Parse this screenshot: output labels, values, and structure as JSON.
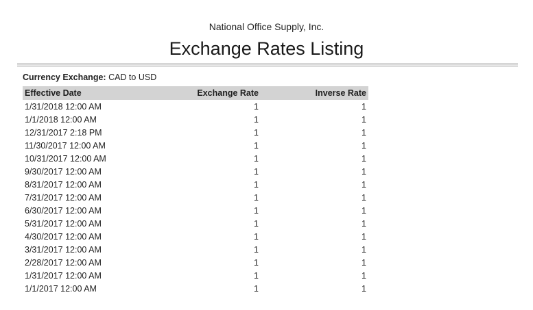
{
  "report": {
    "company": "National Office Supply, Inc.",
    "title": "Exchange Rates Listing",
    "filter_label": "Currency Exchange:",
    "filter_value": "CAD to USD"
  },
  "table": {
    "columns": [
      "Effective Date",
      "Exchange Rate",
      "Inverse Rate"
    ],
    "rows": [
      [
        "1/31/2018 12:00 AM",
        "1",
        "1"
      ],
      [
        "1/1/2018 12:00 AM",
        "1",
        "1"
      ],
      [
        "12/31/2017 2:18 PM",
        "1",
        "1"
      ],
      [
        "11/30/2017 12:00 AM",
        "1",
        "1"
      ],
      [
        "10/31/2017 12:00 AM",
        "1",
        "1"
      ],
      [
        "9/30/2017 12:00 AM",
        "1",
        "1"
      ],
      [
        "8/31/2017 12:00 AM",
        "1",
        "1"
      ],
      [
        "7/31/2017 12:00 AM",
        "1",
        "1"
      ],
      [
        "6/30/2017 12:00 AM",
        "1",
        "1"
      ],
      [
        "5/31/2017 12:00 AM",
        "1",
        "1"
      ],
      [
        "4/30/2017 12:00 AM",
        "1",
        "1"
      ],
      [
        "3/31/2017 12:00 AM",
        "1",
        "1"
      ],
      [
        "2/28/2017 12:00 AM",
        "1",
        "1"
      ],
      [
        "1/31/2017 12:00 AM",
        "1",
        "1"
      ],
      [
        "1/1/2017 12:00 AM",
        "1",
        "1"
      ]
    ]
  },
  "colors": {
    "table_header_bg": "#d3d3d3",
    "text": "#1f1f1f",
    "rule_top": "#6e6e6e",
    "rule_bottom": "#8f8f8f",
    "background": "#ffffff"
  }
}
